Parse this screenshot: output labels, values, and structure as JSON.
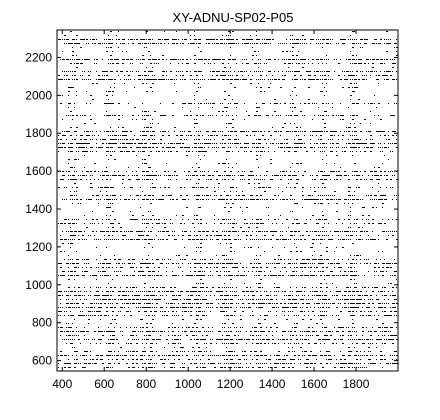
{
  "chart_data": {
    "type": "heatmap",
    "title": "XY-ADNU-SP02-P05",
    "xlabel": "",
    "ylabel": "",
    "xlim": [
      375,
      2000
    ],
    "ylim": [
      545,
      2345
    ],
    "xticks": [
      400,
      600,
      800,
      1000,
      1200,
      1400,
      1600,
      1800
    ],
    "yticks": [
      600,
      800,
      1000,
      1200,
      1400,
      1600,
      1800,
      2000,
      2200
    ],
    "grid": false,
    "legend": "none",
    "colors": {
      "background": "#ffffff",
      "marks": "#000000"
    },
    "dense_row_bands": [
      [
        560,
        640
      ],
      [
        690,
        780
      ],
      [
        820,
        1000
      ],
      [
        1040,
        1080
      ],
      [
        1090,
        1140
      ],
      [
        1230,
        1290
      ],
      [
        1320,
        1360
      ],
      [
        1440,
        1480
      ],
      [
        1540,
        1620
      ],
      [
        1700,
        1820
      ],
      [
        1880,
        1910
      ],
      [
        2080,
        2130
      ],
      [
        2170,
        2200
      ],
      [
        2270,
        2310
      ]
    ],
    "dense_column_bands": [
      [
        420,
        470
      ],
      [
        600,
        640
      ],
      [
        780,
        830
      ],
      [
        1020,
        1060
      ],
      [
        1160,
        1210
      ],
      [
        1320,
        1350
      ],
      [
        1480,
        1520
      ],
      [
        1620,
        1660
      ],
      [
        1760,
        1800
      ]
    ]
  }
}
